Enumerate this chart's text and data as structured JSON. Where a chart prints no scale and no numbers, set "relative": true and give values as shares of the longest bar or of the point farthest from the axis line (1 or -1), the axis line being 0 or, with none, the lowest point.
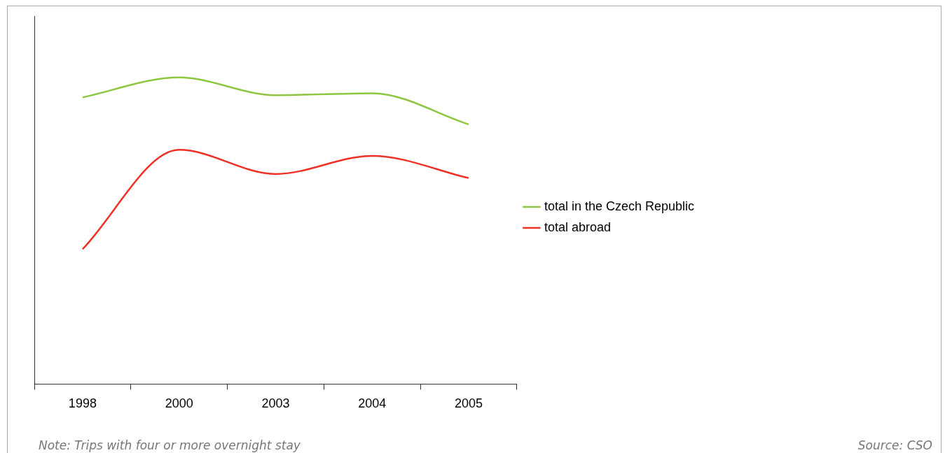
{
  "chart_data": {
    "type": "line",
    "relative": true,
    "categories": [
      "1998",
      "2000",
      "2003",
      "2004",
      "2005"
    ],
    "series": [
      {
        "name": "total in the Czech Republic",
        "color": "#8dc63f",
        "values": [
          0.935,
          1,
          0.942,
          0.948,
          0.847
        ]
      },
      {
        "name": "total abroad",
        "color": "#ee3124",
        "values": [
          0.44,
          0.764,
          0.685,
          0.744,
          0.672
        ]
      }
    ],
    "legend": "right",
    "marker": "none",
    "line_style": "solid",
    "annotations": [
      "Note: Trips with four or more overnight stay",
      "Source: CSO"
    ]
  }
}
